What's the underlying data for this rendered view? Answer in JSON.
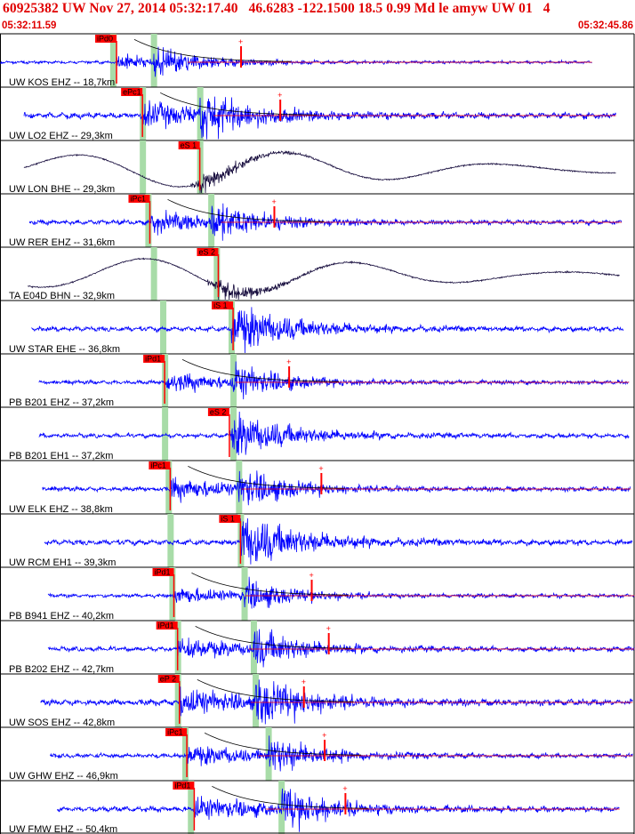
{
  "header": {
    "title": "60925382 UW Nov 27, 2014 05:32:17.40   46.6283 -122.1500 18.5 0.99 Md le amyw UW 01   4",
    "start_time": "05:32:11.59",
    "end_time": "05:32:45.86"
  },
  "chart_data": {
    "type": "line",
    "title": "60925382 UW Nov 27, 2014 05:32:17.40   46.6283 -122.1500 18.5 0.99 Md le amyw UW 01   4",
    "xlabel": "",
    "ylabel": "",
    "x_range": [
      "05:32:11.59",
      "05:32:45.86"
    ],
    "grid": false,
    "colors": {
      "short_period": "#0000ff",
      "broadband": "#1a1040",
      "pick": "#ff0000",
      "window": "#a8dca8",
      "coda": "#000000"
    },
    "traces": [
      {
        "label": "UW KOS EHZ -- 18,7km",
        "dist_km": 18.7,
        "pick": "iPd0",
        "pick_t": 6.3,
        "p_win_t": 6.1,
        "s_win_t": 8.3,
        "start_t": 0.0,
        "end_t": 32.0,
        "amp": 0.28,
        "type": "sp",
        "coda": true
      },
      {
        "label": "UW LO2 EHZ -- 29,3km",
        "dist_km": 29.3,
        "pick": "ePc1",
        "pick_t": 7.7,
        "p_win_t": 7.7,
        "s_win_t": 10.8,
        "start_t": 1.3,
        "end_t": 33.3,
        "amp": 0.55,
        "type": "sp",
        "coda": true
      },
      {
        "label": "UW LON BHE -- 29,3km",
        "dist_km": 29.3,
        "pick": "eS 1",
        "pick_t": 10.8,
        "p_win_t": 7.7,
        "s_win_t": 10.8,
        "start_t": 1.3,
        "end_t": 33.3,
        "amp": 0.55,
        "type": "bb",
        "coda": false
      },
      {
        "label": "UW RER EHZ -- 31,6km",
        "dist_km": 31.6,
        "pick": "iPc1",
        "pick_t": 8.1,
        "p_win_t": 8.0,
        "s_win_t": 11.4,
        "start_t": 1.6,
        "end_t": 33.6,
        "amp": 0.45,
        "type": "sp",
        "coda": true
      },
      {
        "label": "TA E04D BHN -- 32,9km",
        "dist_km": 32.9,
        "pick": "eS 2",
        "pick_t": 11.8,
        "p_win_t": 8.3,
        "s_win_t": 11.7,
        "start_t": 1.5,
        "end_t": 33.5,
        "amp": 0.5,
        "type": "bb",
        "coda": false
      },
      {
        "label": "UW STAR EHE -- 36,8km",
        "dist_km": 36.8,
        "pick": "iS 1",
        "pick_t": 12.6,
        "p_win_t": 8.8,
        "s_win_t": 12.5,
        "start_t": 1.7,
        "end_t": 33.7,
        "amp": 0.45,
        "type": "sp",
        "coda": false
      },
      {
        "label": "PB B201 EHZ -- 37,2km",
        "dist_km": 37.2,
        "pick": "iPd1",
        "pick_t": 8.9,
        "p_win_t": 8.9,
        "s_win_t": 12.6,
        "start_t": 2.1,
        "end_t": 34.0,
        "amp": 0.4,
        "type": "sp",
        "coda": true
      },
      {
        "label": "PB B201 EH1 -- 37,2km",
        "dist_km": 37.2,
        "pick": "eS 2",
        "pick_t": 12.4,
        "p_win_t": 8.9,
        "s_win_t": 12.6,
        "start_t": 2.1,
        "end_t": 34.0,
        "amp": 0.4,
        "type": "sp",
        "coda": false
      },
      {
        "label": "UW ELK EHZ -- 38,8km",
        "dist_km": 38.8,
        "pick": "iPc1",
        "pick_t": 9.2,
        "p_win_t": 9.1,
        "s_win_t": 12.9,
        "start_t": 2.3,
        "end_t": 34.1,
        "amp": 0.45,
        "type": "sp",
        "coda": true
      },
      {
        "label": "UW RCM EH1 -- 39,3km",
        "dist_km": 39.3,
        "pick": "iS 1",
        "pick_t": 13.0,
        "p_win_t": 9.2,
        "s_win_t": 13.0,
        "start_t": 2.4,
        "end_t": 34.2,
        "amp": 0.5,
        "type": "sp",
        "coda": false
      },
      {
        "label": "PB B941 EHZ -- 40,2km",
        "dist_km": 40.2,
        "pick": "iPd1",
        "pick_t": 9.4,
        "p_win_t": 9.3,
        "s_win_t": 13.2,
        "start_t": 2.6,
        "end_t": 34.3,
        "amp": 0.35,
        "type": "sp",
        "coda": true
      },
      {
        "label": "PB B202 EHZ -- 42,7km",
        "dist_km": 42.7,
        "pick": "iPd1",
        "pick_t": 9.6,
        "p_win_t": 9.6,
        "s_win_t": 13.7,
        "start_t": 2.6,
        "end_t": 34.3,
        "amp": 0.45,
        "type": "sp",
        "coda": true
      },
      {
        "label": "UW SOS EHZ -- 42,8km",
        "dist_km": 42.8,
        "pick": "eP 2",
        "pick_t": 9.7,
        "p_win_t": 9.6,
        "s_win_t": 13.8,
        "start_t": 2.2,
        "end_t": 34.2,
        "amp": 0.6,
        "type": "sp",
        "coda": true
      },
      {
        "label": "UW GHW EHZ -- 46,9km",
        "dist_km": 46.9,
        "pick": "iPc1",
        "pick_t": 10.1,
        "p_win_t": 10.0,
        "s_win_t": 14.5,
        "start_t": 2.7,
        "end_t": 34.2,
        "amp": 0.45,
        "type": "sp",
        "coda": true
      },
      {
        "label": "UW FMW EHZ -- 50,4km",
        "dist_km": 50.4,
        "pick": "iPd1",
        "pick_t": 10.5,
        "p_win_t": 10.3,
        "s_win_t": 15.2,
        "start_t": 3.1,
        "end_t": 33.5,
        "amp": 0.5,
        "type": "sp",
        "coda": true
      }
    ]
  }
}
